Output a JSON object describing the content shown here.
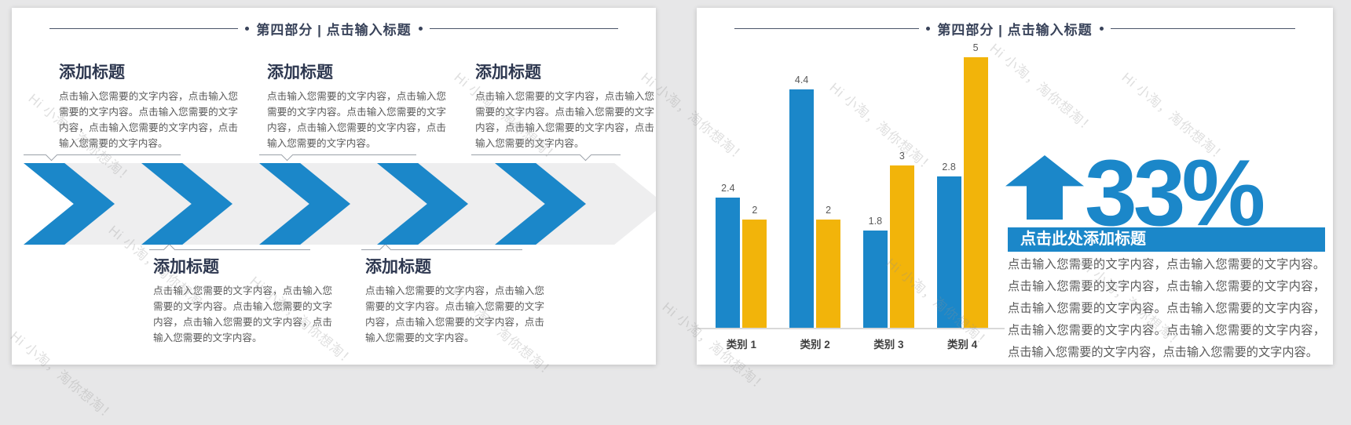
{
  "watermark": {
    "text": "Hi 小淘，淘你想淘！"
  },
  "colors": {
    "accent_blue": "#1B87C9",
    "accent_yellow": "#F2B40A",
    "title_dark": "#2E3850",
    "header_dark": "#39435A",
    "body_gray": "#595959",
    "chevron_gray": "#EEEEEF",
    "axis_gray": "#D9D9D9",
    "background_gray": "#E7E7E8"
  },
  "slide_left": {
    "header": "第四部分 | 点击输入标题",
    "top_blocks": [
      {
        "title": "添加标题",
        "body": "点击输入您需要的文字内容，点击输入您需要的文字内容。点击输入您需要的文字内容，点击输入您需要的文字内容，点击输入您需要的文字内容。"
      },
      {
        "title": "添加标题",
        "body": "点击输入您需要的文字内容，点击输入您需要的文字内容。点击输入您需要的文字内容，点击输入您需要的文字内容，点击输入您需要的文字内容。"
      },
      {
        "title": "添加标题",
        "body": "点击输入您需要的文字内容，点击输入您需要的文字内容。点击输入您需要的文字内容，点击输入您需要的文字内容，点击输入您需要的文字内容。"
      }
    ],
    "bottom_blocks": [
      {
        "title": "添加标题",
        "body": "点击输入您需要的文字内容，点击输入您需要的文字内容。点击输入您需要的文字内容，点击输入您需要的文字内容，点击输入您需要的文字内容。"
      },
      {
        "title": "添加标题",
        "body": "点击输入您需要的文字内容，点击输入您需要的文字内容。点击输入您需要的文字内容，点击输入您需要的文字内容，点击输入您需要的文字内容。"
      }
    ]
  },
  "slide_right": {
    "header": "第四部分 | 点击输入标题",
    "stat": {
      "value": "33%",
      "arrow_icon": "up-arrow"
    },
    "banner_title": "点击此处添加标题",
    "paragraph": "点击输入您需要的文字内容，点击输入您需要的文字内容。点击输入您需要的文字内容，点击输入您需要的文字内容，点击输入您需要的文字内容。点击输入您需要的文字内容，点击输入您需要的文字内容。点击输入您需要的文字内容，点击输入您需要的文字内容，点击输入您需要的文字内容。"
  },
  "chart_data": {
    "type": "bar",
    "categories": [
      "类别 1",
      "类别 2",
      "类别 3",
      "类别 4"
    ],
    "series": [
      {
        "name": "blue",
        "color": "#1B87C9",
        "values": [
          2.4,
          4.4,
          1.8,
          2.8
        ],
        "labels": [
          "2.4",
          "4.4",
          "1.8",
          "2.8"
        ]
      },
      {
        "name": "yellow",
        "color": "#F2B40A",
        "values": [
          2,
          2,
          3,
          5
        ],
        "labels": [
          "2",
          "2",
          "3",
          "5"
        ]
      }
    ],
    "ylim": [
      0,
      5
    ],
    "value_labels": true,
    "grid": false,
    "legend": "none",
    "title": "",
    "xlabel": "",
    "ylabel": ""
  }
}
